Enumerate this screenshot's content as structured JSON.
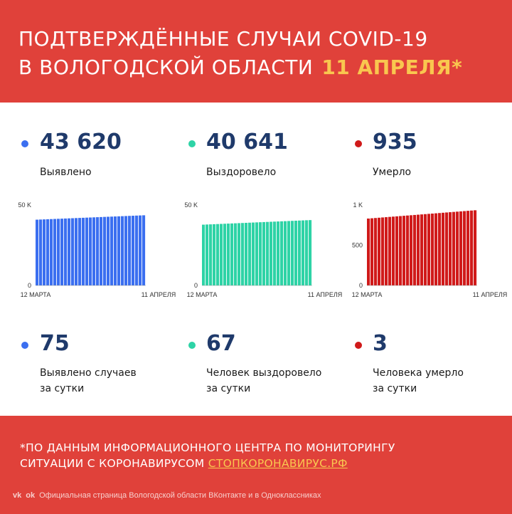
{
  "header": {
    "title_line1": "ПОДТВЕРЖДЁННЫЕ СЛУЧАИ COVID-19",
    "title_line2": "В ВОЛОГОДСКОЙ ОБЛАСТИ",
    "date": "11 АПРЕЛЯ*"
  },
  "colors": {
    "background": "#e0413a",
    "title_date": "#f9c74f",
    "detected": "#3b6ff0",
    "recovered": "#2ed3a6",
    "died": "#d01a1a",
    "number_text": "#1f3a6b"
  },
  "totals": [
    {
      "value": "43 620",
      "label": "Выявлено"
    },
    {
      "value": "40 641",
      "label": "Выздоровело"
    },
    {
      "value": "935",
      "label": "Умерло"
    }
  ],
  "daily": [
    {
      "value": "75",
      "label_line1": "Выявлено случаев",
      "label_line2": "за сутки"
    },
    {
      "value": "67",
      "label_line1": "Человек выздоровело",
      "label_line2": "за сутки"
    },
    {
      "value": "3",
      "label_line1": "Человека умерло",
      "label_line2": "за сутки"
    }
  ],
  "chart_data": [
    {
      "type": "bar",
      "color": "#3b6ff0",
      "ylim": [
        0,
        50000
      ],
      "yticks": [
        "50 K",
        "0"
      ],
      "xticks": [
        "12 МАРТА",
        "11 АПРЕЛЯ"
      ],
      "start": 40900,
      "end": 43620,
      "count": 31
    },
    {
      "type": "bar",
      "color": "#2ed3a6",
      "ylim": [
        0,
        50000
      ],
      "yticks": [
        "50 K",
        "0"
      ],
      "xticks": [
        "12 МАРТА",
        "11 АПРЕЛЯ"
      ],
      "start": 37800,
      "end": 40641,
      "count": 31
    },
    {
      "type": "bar",
      "color": "#d01a1a",
      "ylim": [
        0,
        1000
      ],
      "yticks": [
        "1 K",
        "500",
        "0"
      ],
      "xticks": [
        "12 МАРТА",
        "11 АПРЕЛЯ"
      ],
      "start": 832,
      "end": 935,
      "count": 31
    }
  ],
  "footer": {
    "note_line1": "*ПО ДАННЫМ ИНФОРМАЦИОННОГО ЦЕНТРА ПО МОНИТОРИНГУ",
    "note_line2_prefix": "СИТУАЦИИ С КОРОНАВИРУСОМ ",
    "note_link": "СТОПКОРОНАВИРУС.РФ",
    "social_vk": "vk",
    "social_ok": "ok",
    "social_text": "Официальная страница Вологодской области ВКонтакте и в Одноклассниках"
  }
}
